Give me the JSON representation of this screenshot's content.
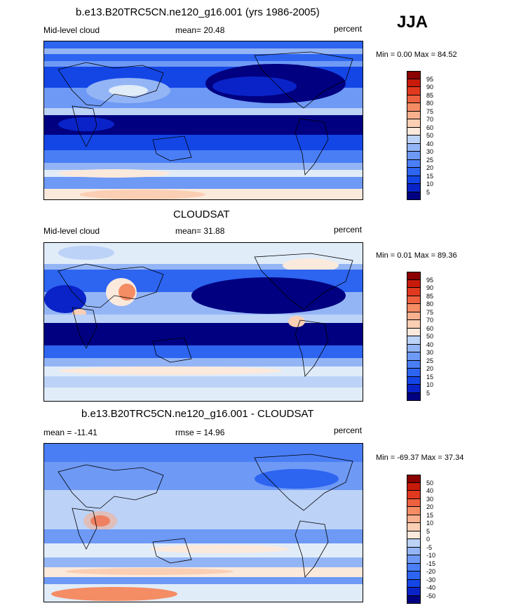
{
  "season": "JJA",
  "colors": {
    "cloud_scale": [
      "#000080",
      "#0a23c8",
      "#1446e6",
      "#2d64f0",
      "#4a7ef5",
      "#6e99f5",
      "#94b5f5",
      "#bcd2f7",
      "#e1ecf9",
      "#fbe9dc",
      "#fbcfb4",
      "#f9b08f",
      "#f48c64",
      "#ed6140",
      "#e0391f",
      "#c81a0b",
      "#8b0000"
    ],
    "diff_scale": [
      "#000080",
      "#0a23c8",
      "#1446e6",
      "#2d64f0",
      "#4a7ef5",
      "#6e99f5",
      "#94b5f5",
      "#bcd2f7",
      "#e1ecf9",
      "#fbe9dc",
      "#fbcfb4",
      "#f9b08f",
      "#f48c64",
      "#ed6140",
      "#e0391f",
      "#c81a0b",
      "#8b0000"
    ]
  },
  "panels": [
    {
      "title": "b.e13.B20TRC5CN.ne120_g16.001 (yrs 1986-2005)",
      "left_label": "Mid-level cloud",
      "center_label": "mean=  20.48",
      "units": "percent",
      "minmax": "Min =   0.00 Max =  84.52",
      "levels": [
        "95",
        "90",
        "85",
        "80",
        "75",
        "70",
        "60",
        "50",
        "40",
        "30",
        "25",
        "20",
        "15",
        "10",
        "5"
      ]
    },
    {
      "title": "CLOUDSAT",
      "left_label": "Mid-level cloud",
      "center_label": "mean=  31.88",
      "units": "percent",
      "minmax": "Min =   0.01 Max =  89.36",
      "levels": [
        "95",
        "90",
        "85",
        "80",
        "75",
        "70",
        "60",
        "50",
        "40",
        "30",
        "25",
        "20",
        "15",
        "10",
        "5"
      ]
    },
    {
      "title": "b.e13.B20TRC5CN.ne120_g16.001 - CLOUDSAT",
      "left_label": "mean = -11.41",
      "center_label": "rmse =  14.96",
      "units": "percent",
      "minmax": "Min = -69.37 Max =  37.34",
      "levels": [
        "50",
        "40",
        "30",
        "20",
        "15",
        "10",
        "5",
        "0",
        "-5",
        "-10",
        "-15",
        "-20",
        "-30",
        "-40",
        "-50"
      ]
    }
  ],
  "chart_data": [
    {
      "type": "heatmap",
      "title": "b.e13.B20TRC5CN.ne120_g16.001 (yrs 1986-2005)",
      "variable": "Mid-level cloud",
      "units": "percent",
      "season": "JJA",
      "mean": 20.48,
      "min": 0.0,
      "max": 84.52,
      "contour_levels": [
        5,
        10,
        15,
        20,
        25,
        30,
        40,
        50,
        60,
        70,
        75,
        80,
        85,
        90,
        95
      ]
    },
    {
      "type": "heatmap",
      "title": "CLOUDSAT",
      "variable": "Mid-level cloud",
      "units": "percent",
      "season": "JJA",
      "mean": 31.88,
      "min": 0.01,
      "max": 89.36,
      "contour_levels": [
        5,
        10,
        15,
        20,
        25,
        30,
        40,
        50,
        60,
        70,
        75,
        80,
        85,
        90,
        95
      ]
    },
    {
      "type": "heatmap",
      "title": "b.e13.B20TRC5CN.ne120_g16.001 - CLOUDSAT",
      "units": "percent",
      "season": "JJA",
      "mean": -11.41,
      "rmse": 14.96,
      "min": -69.37,
      "max": 37.34,
      "contour_levels": [
        -50,
        -40,
        -30,
        -20,
        -15,
        -10,
        -5,
        0,
        5,
        10,
        15,
        20,
        30,
        40,
        50
      ]
    }
  ]
}
